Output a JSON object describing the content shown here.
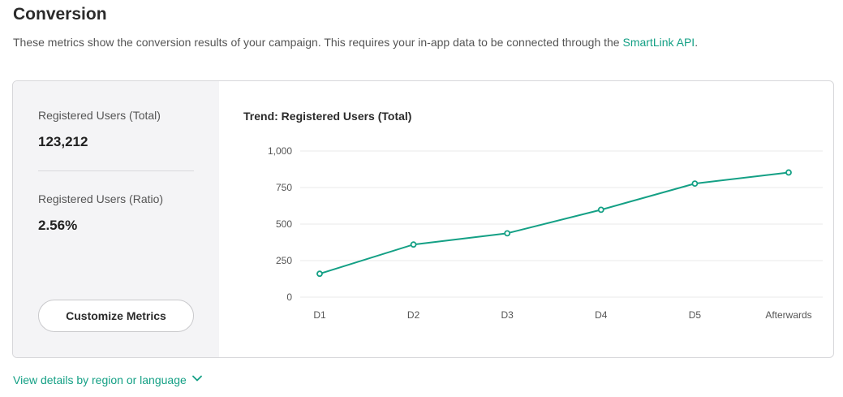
{
  "section": {
    "title": "Conversion",
    "description_prefix": "These metrics show the conversion results of your campaign. This requires your in-app data to be connected through the ",
    "description_link": "SmartLink API",
    "description_suffix": "."
  },
  "metrics": [
    {
      "label": "Registered Users (Total)",
      "value": "123,212"
    },
    {
      "label": "Registered Users (Ratio)",
      "value": "2.56%"
    }
  ],
  "customize_button": "Customize Metrics",
  "footer_link": {
    "label": "View details by region or language",
    "icon": "chevron-down-icon"
  },
  "colors": {
    "accent": "#14a085"
  },
  "chart_data": {
    "type": "line",
    "title": "Trend: Registered Users (Total)",
    "categories": [
      "D1",
      "D2",
      "D3",
      "D4",
      "D5",
      "Afterwards"
    ],
    "series": [
      {
        "values": [
          160,
          360,
          437,
          598,
          777,
          853
        ]
      }
    ],
    "ylim": [
      0,
      1000
    ],
    "yticks": [
      "0",
      "250",
      "500",
      "750",
      "1,000"
    ],
    "ytick_values": [
      0,
      250,
      500,
      750,
      1000
    ],
    "grid": true,
    "color": "#14a085"
  }
}
